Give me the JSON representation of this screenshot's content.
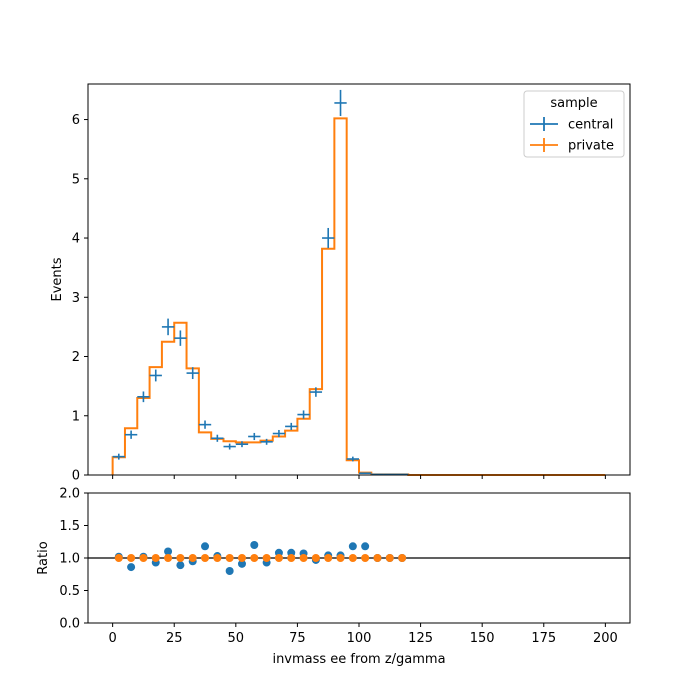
{
  "colors": {
    "central": "#1f77b4",
    "private": "#ff7f0e",
    "axis": "#000000",
    "legend_edge": "#cccccc"
  },
  "chart_data": [
    {
      "type": "histogram",
      "panel": "main",
      "ylabel": "Events",
      "xlim": [
        -10,
        210
      ],
      "ylim": [
        0,
        6.6
      ],
      "yticks": [
        "0",
        "1",
        "2",
        "3",
        "4",
        "5",
        "6"
      ],
      "legend": {
        "title": "sample",
        "placement": "top-right"
      },
      "bin_edges": [
        0,
        5,
        10,
        15,
        20,
        25,
        30,
        35,
        40,
        45,
        50,
        55,
        60,
        65,
        70,
        75,
        80,
        85,
        90,
        95,
        100,
        105,
        110,
        115,
        120,
        125,
        130,
        135,
        140,
        145,
        150,
        155,
        160,
        165,
        170,
        175,
        180,
        185,
        190,
        195,
        200
      ],
      "series": [
        {
          "name": "central",
          "style": "errorbar",
          "values": [
            0.31,
            0.68,
            1.32,
            1.68,
            2.5,
            2.31,
            1.72,
            0.85,
            0.62,
            0.48,
            0.52,
            0.65,
            0.56,
            0.7,
            0.82,
            1.02,
            1.4,
            4.0,
            6.28,
            0.27,
            0.03,
            0.01,
            0.01,
            0.01,
            0,
            0,
            0,
            0,
            0,
            0,
            0,
            0,
            0,
            0,
            0,
            0,
            0,
            0,
            0,
            0
          ],
          "errors": [
            0.05,
            0.07,
            0.09,
            0.1,
            0.14,
            0.13,
            0.1,
            0.07,
            0.06,
            0.05,
            0.05,
            0.06,
            0.05,
            0.06,
            0.06,
            0.07,
            0.08,
            0.17,
            0.22,
            0.04,
            0.01,
            0.005,
            0.005,
            0.005,
            0,
            0,
            0,
            0,
            0,
            0,
            0,
            0,
            0,
            0,
            0,
            0,
            0,
            0,
            0,
            0
          ]
        },
        {
          "name": "private",
          "style": "step",
          "values": [
            0.3,
            0.79,
            1.3,
            1.82,
            2.25,
            2.57,
            1.8,
            0.72,
            0.61,
            0.57,
            0.55,
            0.55,
            0.58,
            0.65,
            0.75,
            0.95,
            1.45,
            3.82,
            6.02,
            0.25,
            0.04,
            0.01,
            0.01,
            0.01,
            0,
            0,
            0,
            0,
            0,
            0,
            0,
            0,
            0,
            0,
            0,
            0,
            0,
            0,
            0,
            0
          ]
        }
      ]
    },
    {
      "type": "scatter",
      "panel": "ratio",
      "xlabel": "invmass ee from z/gamma",
      "ylabel": "Ratio",
      "xlim": [
        -10,
        210
      ],
      "ylim": [
        0,
        2.0
      ],
      "yticks": [
        "0.0",
        "0.5",
        "1.0",
        "1.5",
        "2.0"
      ],
      "xticks": [
        0,
        25,
        50,
        75,
        100,
        125,
        150,
        175,
        200
      ],
      "reference_line": 1.0,
      "x": [
        2.5,
        7.5,
        12.5,
        17.5,
        22.5,
        27.5,
        32.5,
        37.5,
        42.5,
        47.5,
        52.5,
        57.5,
        62.5,
        67.5,
        72.5,
        77.5,
        82.5,
        87.5,
        92.5,
        97.5,
        102.5,
        107.5,
        112.5,
        117.5
      ],
      "series": [
        {
          "name": "central",
          "values": [
            1.02,
            0.86,
            1.02,
            0.93,
            1.1,
            0.89,
            0.95,
            1.18,
            1.03,
            0.8,
            0.91,
            1.2,
            0.93,
            1.08,
            1.08,
            1.07,
            0.97,
            1.04,
            1.04,
            1.18,
            1.18,
            1.0,
            1.0,
            1.0
          ]
        },
        {
          "name": "private",
          "values": [
            1.0,
            1.0,
            1.0,
            1.0,
            1.0,
            1.0,
            1.0,
            1.0,
            1.0,
            1.0,
            1.0,
            1.0,
            1.0,
            1.0,
            1.0,
            1.0,
            1.0,
            1.0,
            1.0,
            1.0,
            1.0,
            1.0,
            1.0,
            1.0
          ]
        }
      ]
    }
  ]
}
